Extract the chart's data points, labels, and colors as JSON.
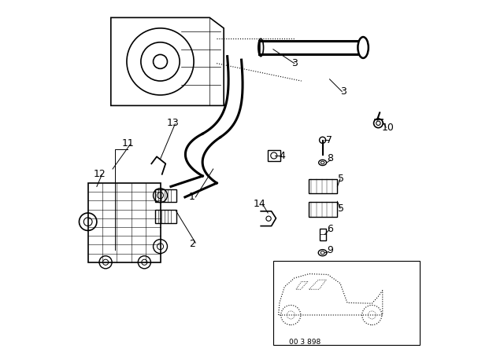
{
  "bg_color": "#f0f0f0",
  "fig_width": 6.4,
  "fig_height": 4.48,
  "dpi": 100,
  "title_code": "00 3 898",
  "line_color": "#000000",
  "label_fontsize": 9,
  "diagram_bg": "#ffffff"
}
